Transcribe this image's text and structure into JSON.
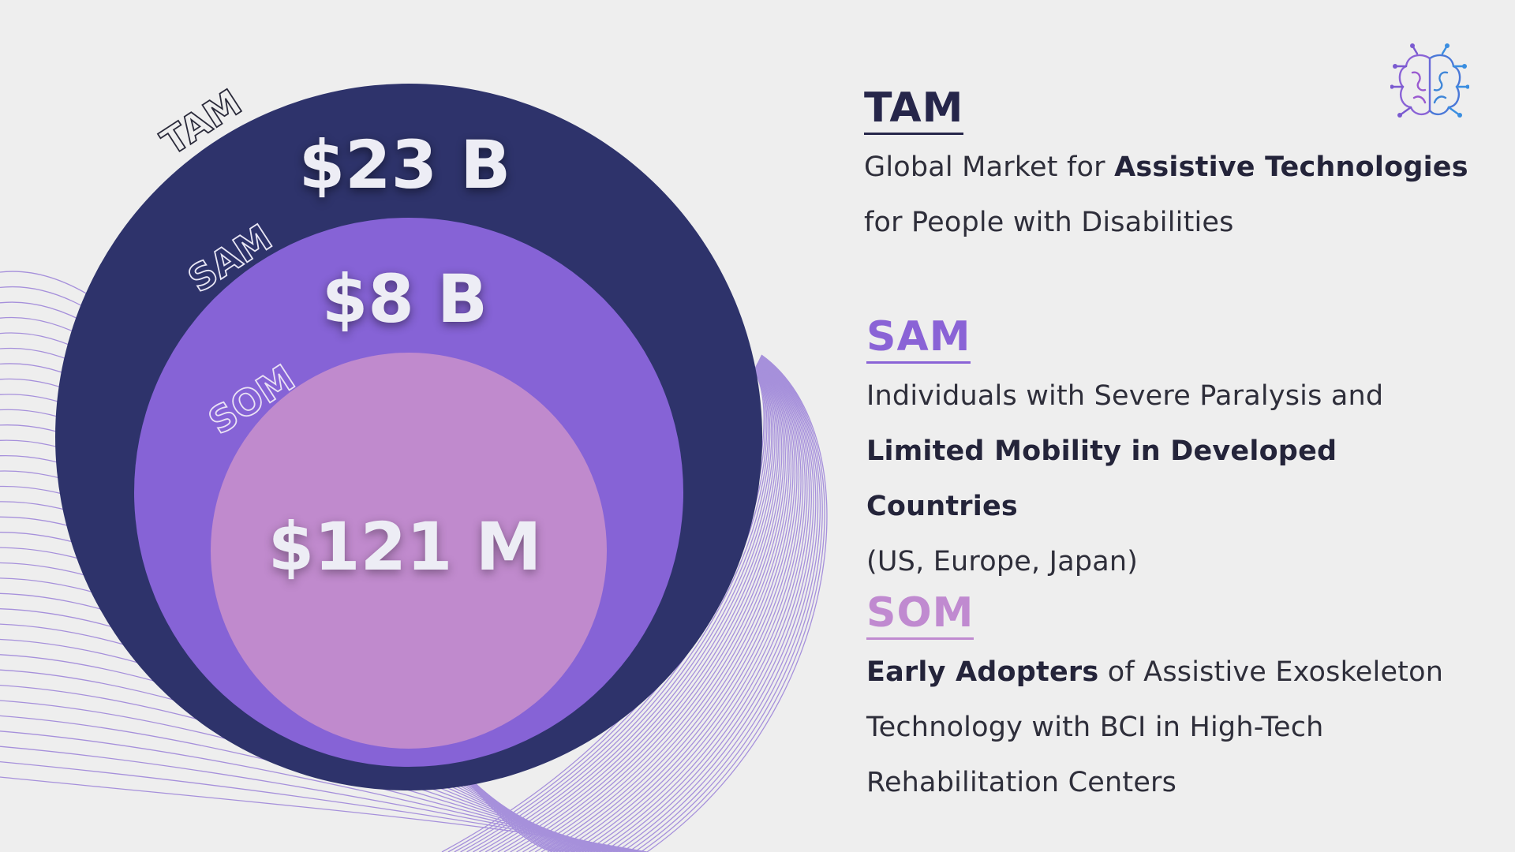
{
  "diagram": {
    "tam": {
      "label": "TAM",
      "value": "$23 B",
      "color": "#2e336b"
    },
    "sam": {
      "label": "SAM",
      "value": "$8 B",
      "color": "#8663d6"
    },
    "som": {
      "label": "SOM",
      "value": "$121 M",
      "color": "#c08acd"
    }
  },
  "sections": {
    "tam": {
      "heading": "TAM",
      "line1_pre": "Global Market for ",
      "line1_bold": "Assistive Technologies",
      "line2": "for People with Disabilities"
    },
    "sam": {
      "heading": "SAM",
      "line1": "Individuals with Severe Paralysis and",
      "line2_bold": "Limited Mobility in Developed Countries",
      "line3": "(US, Europe, Japan)"
    },
    "som": {
      "heading": "SOM",
      "line1_bold": "Early Adopters",
      "line1_post": " of Assistive Exoskeleton",
      "line2": "Technology with BCI in High-Tech",
      "line3": "Rehabilitation Centers"
    }
  },
  "logo": {
    "icon": "brain-circuit-icon"
  }
}
